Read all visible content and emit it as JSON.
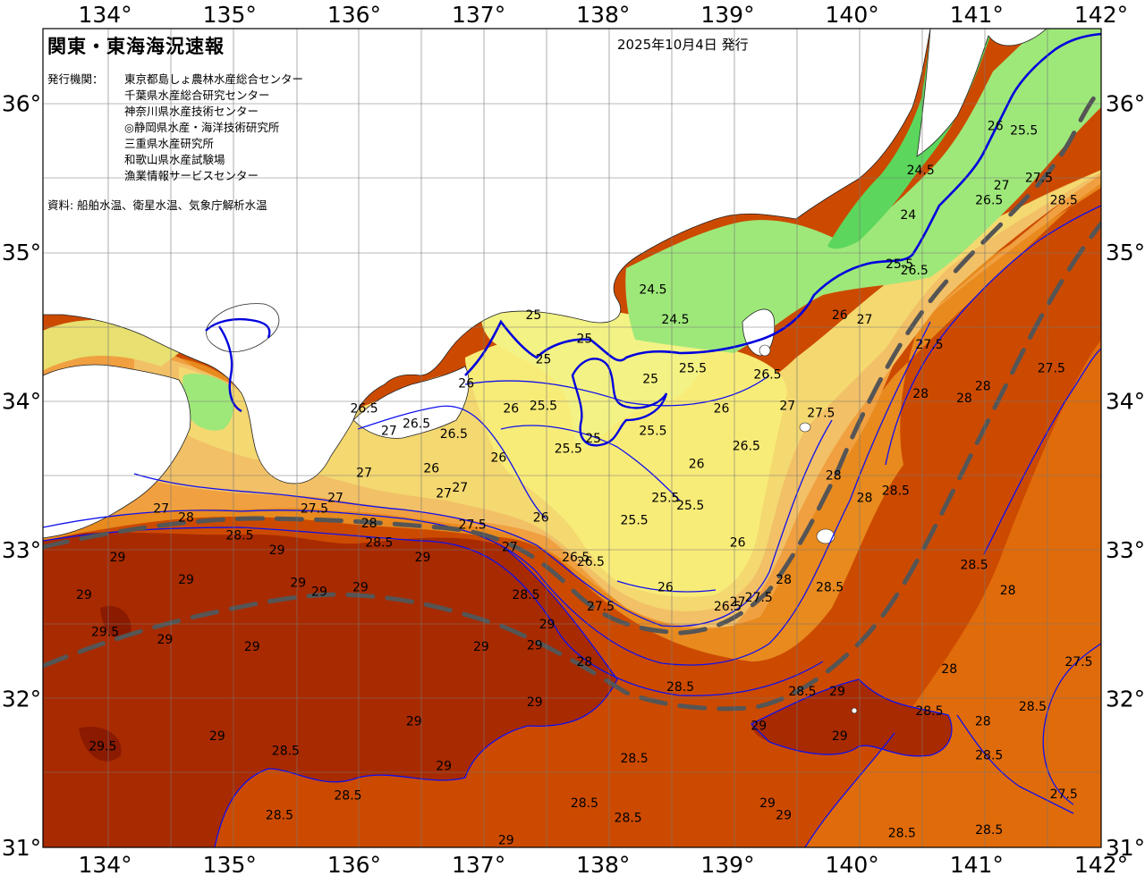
{
  "header": {
    "title": "関東・東海海況速報",
    "issued": "2025年10月4日 発行",
    "issuer_label": "発行機関：",
    "issuers": [
      "東京都島しょ農林水産総合センター",
      "千葉県水産総合研究センター",
      "神奈川県水産技術センター",
      "◎静岡県水産・海洋技術研究所",
      "三重県水産研究所",
      "和歌山県水産試験場",
      "漁業情報サービスセンター"
    ],
    "sources": "資料: 船舶水温、衛星水温、気象庁解析水温"
  },
  "axes": {
    "lon_labels": [
      "134°",
      "135°",
      "136°",
      "137°",
      "138°",
      "139°",
      "140°",
      "141°",
      "142°"
    ],
    "lat_labels": [
      "36°",
      "35°",
      "34°",
      "33°",
      "32°",
      "31°"
    ],
    "lon_range": [
      133.5,
      142.0
    ],
    "lat_range": [
      31.0,
      36.5
    ]
  },
  "colors": {
    "land": "#ffffff",
    "t24": "#5cd65c",
    "t245": "#9ee87a",
    "t25": "#f3f284",
    "t255": "#f8ec78",
    "t26": "#f4d870",
    "t265": "#f2c066",
    "t27": "#f0a040",
    "t275": "#e88a1e",
    "t28": "#e06b0a",
    "t285": "#cc4a00",
    "t29": "#a82a00",
    "t295": "#8a1a00",
    "isotherm": "#1010ee",
    "isotherm_major": "#0000dd",
    "kuroshio": "#555555",
    "grid": "#777777"
  },
  "temperature_labels": [
    {
      "text": "26",
      "lon": 141.15,
      "lat": 35.85
    },
    {
      "text": "25.5",
      "lon": 141.38,
      "lat": 35.82
    },
    {
      "text": "24.5",
      "lon": 140.55,
      "lat": 35.55
    },
    {
      "text": "24",
      "lon": 140.45,
      "lat": 35.25
    },
    {
      "text": "26.5",
      "lon": 141.1,
      "lat": 35.35
    },
    {
      "text": "27",
      "lon": 141.2,
      "lat": 35.45
    },
    {
      "text": "27.5",
      "lon": 141.5,
      "lat": 35.5
    },
    {
      "text": "28.5",
      "lon": 141.7,
      "lat": 35.35
    },
    {
      "text": "25.5",
      "lon": 140.38,
      "lat": 34.92
    },
    {
      "text": "26.5",
      "lon": 140.5,
      "lat": 34.88
    },
    {
      "text": "26",
      "lon": 139.9,
      "lat": 34.58
    },
    {
      "text": "27",
      "lon": 140.1,
      "lat": 34.55
    },
    {
      "text": "27.5",
      "lon": 140.62,
      "lat": 34.38
    },
    {
      "text": "26.5",
      "lon": 139.32,
      "lat": 34.18
    },
    {
      "text": "27",
      "lon": 139.48,
      "lat": 33.97
    },
    {
      "text": "27.5",
      "lon": 139.75,
      "lat": 33.92
    },
    {
      "text": "24.5",
      "lon": 138.4,
      "lat": 34.75
    },
    {
      "text": "24.5",
      "lon": 138.58,
      "lat": 34.55
    },
    {
      "text": "25",
      "lon": 137.44,
      "lat": 34.58
    },
    {
      "text": "25",
      "lon": 137.85,
      "lat": 34.42
    },
    {
      "text": "25",
      "lon": 137.52,
      "lat": 34.28
    },
    {
      "text": "25",
      "lon": 138.38,
      "lat": 34.15
    },
    {
      "text": "25.5",
      "lon": 138.72,
      "lat": 34.22
    },
    {
      "text": "25.5",
      "lon": 137.52,
      "lat": 33.97
    },
    {
      "text": "26",
      "lon": 137.26,
      "lat": 33.95
    },
    {
      "text": "26",
      "lon": 136.9,
      "lat": 34.12
    },
    {
      "text": "25.5",
      "lon": 138.4,
      "lat": 33.8
    },
    {
      "text": "25.5",
      "lon": 137.72,
      "lat": 33.68
    },
    {
      "text": "25",
      "lon": 137.92,
      "lat": 33.75
    },
    {
      "text": "26",
      "lon": 138.95,
      "lat": 33.95
    },
    {
      "text": "26",
      "lon": 138.75,
      "lat": 33.58
    },
    {
      "text": "26.5",
      "lon": 139.15,
      "lat": 33.7
    },
    {
      "text": "25.5",
      "lon": 138.5,
      "lat": 33.35
    },
    {
      "text": "25.5",
      "lon": 138.25,
      "lat": 33.2
    },
    {
      "text": "25.5",
      "lon": 138.7,
      "lat": 33.3
    },
    {
      "text": "26",
      "lon": 139.08,
      "lat": 33.05
    },
    {
      "text": "26.5",
      "lon": 136.08,
      "lat": 33.95
    },
    {
      "text": "27",
      "lon": 136.28,
      "lat": 33.8
    },
    {
      "text": "26.5",
      "lon": 136.5,
      "lat": 33.85
    },
    {
      "text": "26.5",
      "lon": 136.8,
      "lat": 33.78
    },
    {
      "text": "26",
      "lon": 137.16,
      "lat": 33.62
    },
    {
      "text": "27",
      "lon": 136.08,
      "lat": 33.52
    },
    {
      "text": "26",
      "lon": 136.62,
      "lat": 33.55
    },
    {
      "text": "27",
      "lon": 136.72,
      "lat": 33.38
    },
    {
      "text": "27",
      "lon": 136.85,
      "lat": 33.42
    },
    {
      "text": "26",
      "lon": 137.5,
      "lat": 33.22
    },
    {
      "text": "27.5",
      "lon": 135.68,
      "lat": 33.28
    },
    {
      "text": "27",
      "lon": 135.85,
      "lat": 33.35
    },
    {
      "text": "27",
      "lon": 134.45,
      "lat": 33.28
    },
    {
      "text": "28",
      "lon": 134.65,
      "lat": 33.22
    },
    {
      "text": "28.5",
      "lon": 135.08,
      "lat": 33.1
    },
    {
      "text": "28",
      "lon": 136.12,
      "lat": 33.18
    },
    {
      "text": "28.5",
      "lon": 136.2,
      "lat": 33.05
    },
    {
      "text": "27.5",
      "lon": 136.95,
      "lat": 33.17
    },
    {
      "text": "27",
      "lon": 137.25,
      "lat": 33.02
    },
    {
      "text": "29",
      "lon": 135.38,
      "lat": 33.0
    },
    {
      "text": "29",
      "lon": 136.55,
      "lat": 32.95
    },
    {
      "text": "26.5",
      "lon": 137.78,
      "lat": 32.95
    },
    {
      "text": "26.5",
      "lon": 137.9,
      "lat": 32.92
    },
    {
      "text": "28.5",
      "lon": 137.38,
      "lat": 32.7
    },
    {
      "text": "27.5",
      "lon": 137.98,
      "lat": 32.62
    },
    {
      "text": "29",
      "lon": 137.55,
      "lat": 32.5
    },
    {
      "text": "26",
      "lon": 138.5,
      "lat": 32.75
    },
    {
      "text": "26.5",
      "lon": 139.0,
      "lat": 32.62
    },
    {
      "text": "27",
      "lon": 139.08,
      "lat": 32.65
    },
    {
      "text": "27.5",
      "lon": 139.25,
      "lat": 32.68
    },
    {
      "text": "28",
      "lon": 139.45,
      "lat": 32.8
    },
    {
      "text": "28",
      "lon": 139.85,
      "lat": 33.5
    },
    {
      "text": "28",
      "lon": 140.1,
      "lat": 33.35
    },
    {
      "text": "28.5",
      "lon": 140.35,
      "lat": 33.4
    },
    {
      "text": "28.5",
      "lon": 139.82,
      "lat": 32.75
    },
    {
      "text": "28",
      "lon": 140.55,
      "lat": 34.05
    },
    {
      "text": "28",
      "lon": 140.9,
      "lat": 34.02
    },
    {
      "text": "28",
      "lon": 141.05,
      "lat": 34.1
    },
    {
      "text": "27.5",
      "lon": 141.6,
      "lat": 34.22
    },
    {
      "text": "28.5",
      "lon": 140.98,
      "lat": 32.9
    },
    {
      "text": "28",
      "lon": 141.25,
      "lat": 32.73
    },
    {
      "text": "28",
      "lon": 140.78,
      "lat": 32.2
    },
    {
      "text": "27.5",
      "lon": 141.82,
      "lat": 32.25
    },
    {
      "text": "28.5",
      "lon": 139.6,
      "lat": 32.05
    },
    {
      "text": "29",
      "lon": 139.88,
      "lat": 32.05
    },
    {
      "text": "28.5",
      "lon": 140.62,
      "lat": 31.92
    },
    {
      "text": "29",
      "lon": 139.25,
      "lat": 31.82
    },
    {
      "text": "29",
      "lon": 139.9,
      "lat": 31.75
    },
    {
      "text": "28",
      "lon": 141.05,
      "lat": 31.85
    },
    {
      "text": "28.5",
      "lon": 141.1,
      "lat": 31.62
    },
    {
      "text": "27.5",
      "lon": 141.7,
      "lat": 31.36
    },
    {
      "text": "28.5",
      "lon": 141.45,
      "lat": 31.95
    },
    {
      "text": "29",
      "lon": 133.83,
      "lat": 32.7
    },
    {
      "text": "29",
      "lon": 134.1,
      "lat": 32.95
    },
    {
      "text": "29",
      "lon": 134.65,
      "lat": 32.8
    },
    {
      "text": "29.5",
      "lon": 134.0,
      "lat": 32.45
    },
    {
      "text": "29",
      "lon": 134.48,
      "lat": 32.4
    },
    {
      "text": "29",
      "lon": 135.18,
      "lat": 32.35
    },
    {
      "text": "29",
      "lon": 135.55,
      "lat": 32.78
    },
    {
      "text": "29",
      "lon": 135.72,
      "lat": 32.72
    },
    {
      "text": "29",
      "lon": 136.05,
      "lat": 32.75
    },
    {
      "text": "29",
      "lon": 137.02,
      "lat": 32.35
    },
    {
      "text": "29",
      "lon": 137.45,
      "lat": 32.36
    },
    {
      "text": "28",
      "lon": 137.85,
      "lat": 32.25
    },
    {
      "text": "28.5",
      "lon": 138.62,
      "lat": 32.08
    },
    {
      "text": "29",
      "lon": 137.45,
      "lat": 31.98
    },
    {
      "text": "29",
      "lon": 136.48,
      "lat": 31.85
    },
    {
      "text": "29",
      "lon": 134.9,
      "lat": 31.75
    },
    {
      "text": "29.5",
      "lon": 133.98,
      "lat": 31.68
    },
    {
      "text": "28.5",
      "lon": 135.45,
      "lat": 31.65
    },
    {
      "text": "29",
      "lon": 136.72,
      "lat": 31.55
    },
    {
      "text": "28.5",
      "lon": 135.95,
      "lat": 31.35
    },
    {
      "text": "28.5",
      "lon": 135.4,
      "lat": 31.22
    },
    {
      "text": "28.5",
      "lon": 137.85,
      "lat": 31.3
    },
    {
      "text": "28.5",
      "lon": 138.25,
      "lat": 31.6
    },
    {
      "text": "28.5",
      "lon": 138.2,
      "lat": 31.2
    },
    {
      "text": "29",
      "lon": 139.32,
      "lat": 31.3
    },
    {
      "text": "29",
      "lon": 139.45,
      "lat": 31.22
    },
    {
      "text": "29",
      "lon": 137.22,
      "lat": 31.05
    },
    {
      "text": "28.5",
      "lon": 140.4,
      "lat": 31.1
    },
    {
      "text": "28.5",
      "lon": 141.1,
      "lat": 31.12
    }
  ]
}
